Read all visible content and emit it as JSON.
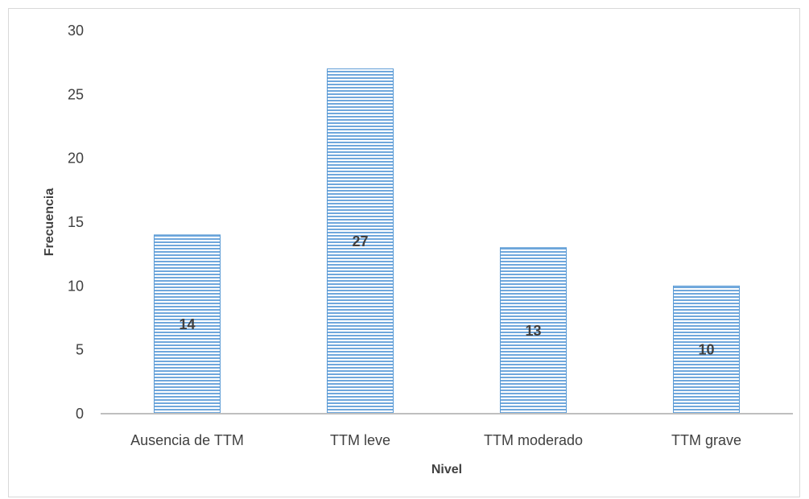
{
  "chart_data": {
    "type": "bar",
    "categories": [
      "Ausencia de TTM",
      "TTM leve",
      "TTM moderado",
      "TTM grave"
    ],
    "values": [
      14,
      27,
      13,
      10
    ],
    "data_labels": [
      "14",
      "27",
      "13",
      "10"
    ],
    "title": "",
    "xlabel": "Nivel",
    "ylabel": "Frecuencia",
    "ylim": [
      0,
      30
    ],
    "yticks": [
      0,
      5,
      10,
      15,
      20,
      25,
      30
    ],
    "ytick_labels": [
      "0",
      "5",
      "10",
      "15",
      "20",
      "25",
      "30"
    ],
    "grid": false,
    "legend": "none",
    "colors": {
      "bar_fill": "#9dc3e6",
      "bar_stripe": "#5b9bd5",
      "axis": "#bfbfbf",
      "text": "#404040"
    }
  }
}
